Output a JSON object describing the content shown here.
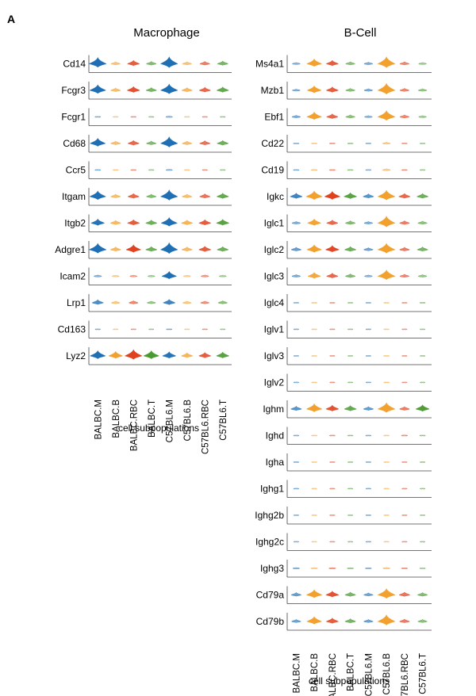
{
  "panel_label": "A",
  "colors": {
    "BALBC.M": "#1f6fb5",
    "BALBC.B": "#f2a12e",
    "BALBC.RBC": "#e0421f",
    "BALBC.T": "#4a9a32",
    "C57BL6.M": "#1f6fb5",
    "C57BL6.B": "#f2a12e",
    "C57BL6.RBC": "#e0421f",
    "C57BL6.T": "#4a9a32"
  },
  "chart_data": [
    {
      "type": "violin",
      "title": "Macrophage",
      "xlabel": "cell subpopulations",
      "categories": [
        "BALBC.M",
        "BALBC.B",
        "BALBC.RBC",
        "BALBC.T",
        "C57BL6.M",
        "C57BL6.B",
        "C57BL6.RBC",
        "C57BL6.T"
      ],
      "series": [
        {
          "name": "Cd14",
          "values": [
            0.9,
            0.3,
            0.5,
            0.35,
            1.0,
            0.3,
            0.35,
            0.4
          ]
        },
        {
          "name": "Fcgr3",
          "values": [
            0.8,
            0.35,
            0.55,
            0.4,
            0.9,
            0.4,
            0.45,
            0.5
          ]
        },
        {
          "name": "Fcgr1",
          "values": [
            0.05,
            0.02,
            0.03,
            0.02,
            0.12,
            0.02,
            0.02,
            0.02
          ]
        },
        {
          "name": "Cd68",
          "values": [
            0.75,
            0.35,
            0.45,
            0.35,
            0.95,
            0.35,
            0.4,
            0.45
          ]
        },
        {
          "name": "Ccr5",
          "values": [
            0.05,
            0.02,
            0.03,
            0.02,
            0.1,
            0.02,
            0.02,
            0.02
          ]
        },
        {
          "name": "Itgam",
          "values": [
            0.8,
            0.35,
            0.45,
            0.35,
            0.95,
            0.35,
            0.4,
            0.5
          ]
        },
        {
          "name": "Itgb2",
          "values": [
            0.6,
            0.4,
            0.5,
            0.45,
            0.8,
            0.45,
            0.5,
            0.55
          ]
        },
        {
          "name": "Adgre1",
          "values": [
            0.9,
            0.4,
            0.7,
            0.45,
            1.0,
            0.4,
            0.5,
            0.45
          ]
        },
        {
          "name": "Icam2",
          "values": [
            0.2,
            0.15,
            0.15,
            0.15,
            0.7,
            0.15,
            0.2,
            0.15
          ]
        },
        {
          "name": "Lrp1",
          "values": [
            0.45,
            0.25,
            0.3,
            0.25,
            0.5,
            0.25,
            0.25,
            0.3
          ]
        },
        {
          "name": "Cd163",
          "values": [
            0.02,
            0.01,
            0.01,
            0.01,
            0.05,
            0.01,
            0.02,
            0.01
          ]
        },
        {
          "name": "Lyz2",
          "values": [
            0.75,
            0.65,
            0.9,
            0.75,
            0.6,
            0.45,
            0.5,
            0.55
          ]
        }
      ]
    },
    {
      "type": "violin",
      "title": "B-Cell",
      "xlabel": "cell subpopulations",
      "categories": [
        "BALBC.M",
        "BALBC.B",
        "BALBC.RBC",
        "BALBC.T",
        "C57BL6.M",
        "C57BL6.B",
        "C57BL6.RBC",
        "C57BL6.T"
      ],
      "series": [
        {
          "name": "Ms4a1",
          "values": [
            0.2,
            0.7,
            0.5,
            0.3,
            0.25,
            1.0,
            0.3,
            0.2
          ]
        },
        {
          "name": "Mzb1",
          "values": [
            0.2,
            0.65,
            0.5,
            0.3,
            0.25,
            1.0,
            0.3,
            0.25
          ]
        },
        {
          "name": "Ebf1",
          "values": [
            0.25,
            0.7,
            0.45,
            0.3,
            0.2,
            0.9,
            0.3,
            0.2
          ]
        },
        {
          "name": "Cd22",
          "values": [
            0.05,
            0.05,
            0.05,
            0.04,
            0.03,
            0.2,
            0.04,
            0.03
          ]
        },
        {
          "name": "Cd19",
          "values": [
            0.05,
            0.08,
            0.05,
            0.04,
            0.03,
            0.2,
            0.04,
            0.03
          ]
        },
        {
          "name": "Igkc",
          "values": [
            0.5,
            0.8,
            0.75,
            0.55,
            0.4,
            0.9,
            0.45,
            0.45
          ]
        },
        {
          "name": "Iglc1",
          "values": [
            0.25,
            0.6,
            0.45,
            0.35,
            0.25,
            1.0,
            0.35,
            0.3
          ]
        },
        {
          "name": "Iglc2",
          "values": [
            0.35,
            0.7,
            0.6,
            0.45,
            0.3,
            0.9,
            0.35,
            0.4
          ]
        },
        {
          "name": "Iglc3",
          "values": [
            0.25,
            0.55,
            0.45,
            0.35,
            0.2,
            0.9,
            0.3,
            0.25
          ]
        },
        {
          "name": "Iglc4",
          "values": [
            0.02,
            0.04,
            0.02,
            0.02,
            0.02,
            0.03,
            0.02,
            0.04
          ]
        },
        {
          "name": "Iglv1",
          "values": [
            0.01,
            0.02,
            0.01,
            0.01,
            0.01,
            0.02,
            0.01,
            0.01
          ]
        },
        {
          "name": "Iglv3",
          "values": [
            0.01,
            0.02,
            0.01,
            0.01,
            0.01,
            0.05,
            0.01,
            0.01
          ]
        },
        {
          "name": "Iglv2",
          "values": [
            0.01,
            0.02,
            0.01,
            0.01,
            0.01,
            0.03,
            0.01,
            0.01
          ]
        },
        {
          "name": "Ighm",
          "values": [
            0.4,
            0.75,
            0.55,
            0.5,
            0.35,
            0.9,
            0.35,
            0.6
          ]
        },
        {
          "name": "Ighd",
          "values": [
            0.03,
            0.05,
            0.04,
            0.03,
            0.03,
            0.04,
            0.08,
            0.05
          ]
        },
        {
          "name": "Igha",
          "values": [
            0.03,
            0.02,
            0.02,
            0.02,
            0.02,
            0.03,
            0.02,
            0.02
          ]
        },
        {
          "name": "Ighg1",
          "values": [
            0.02,
            0.01,
            0.01,
            0.01,
            0.01,
            0.01,
            0.01,
            0.01
          ]
        },
        {
          "name": "Ighg2b",
          "values": [
            0.01,
            0.02,
            0.02,
            0.01,
            0.02,
            0.02,
            0.01,
            0.01
          ]
        },
        {
          "name": "Ighg2c",
          "values": [
            0.01,
            0.01,
            0.01,
            0.01,
            0.02,
            0.02,
            0.01,
            0.01
          ]
        },
        {
          "name": "Ighg3",
          "values": [
            0.12,
            0.12,
            0.12,
            0.1,
            0.08,
            0.15,
            0.08,
            0.05
          ]
        },
        {
          "name": "Cd79a",
          "values": [
            0.35,
            0.75,
            0.55,
            0.4,
            0.3,
            0.9,
            0.4,
            0.35
          ]
        },
        {
          "name": "Cd79b",
          "values": [
            0.3,
            0.7,
            0.5,
            0.4,
            0.3,
            0.95,
            0.35,
            0.3
          ]
        }
      ]
    }
  ]
}
